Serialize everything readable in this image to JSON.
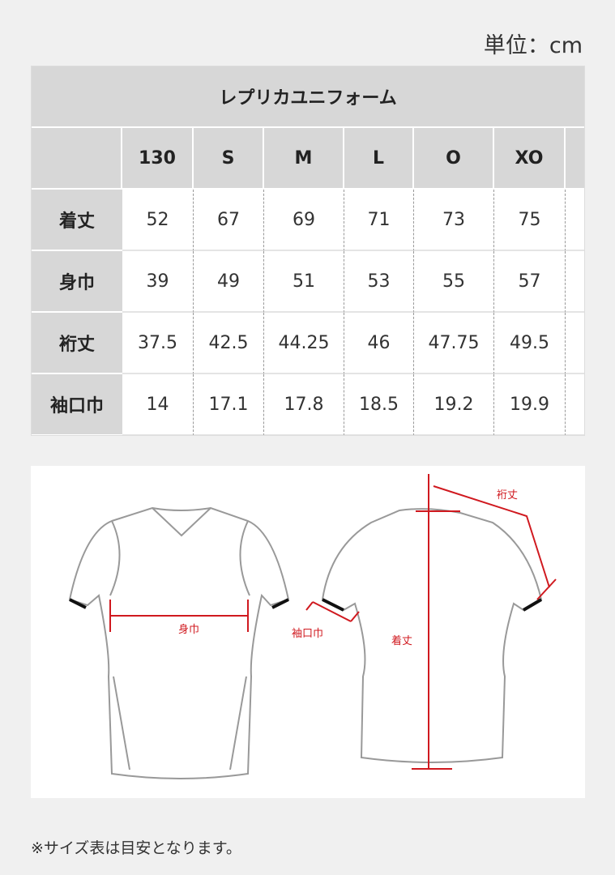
{
  "unit_label": "単位：cm",
  "table": {
    "title": "レプリカユニフォーム",
    "sizes": [
      "130",
      "S",
      "M",
      "L",
      "O",
      "XO"
    ],
    "rows": [
      {
        "label": "着丈",
        "values": [
          "52",
          "67",
          "69",
          "71",
          "73",
          "75"
        ]
      },
      {
        "label": "身巾",
        "values": [
          "39",
          "49",
          "51",
          "53",
          "55",
          "57"
        ]
      },
      {
        "label": "裄丈",
        "values": [
          "37.5",
          "42.5",
          "44.25",
          "46",
          "47.75",
          "49.5"
        ]
      },
      {
        "label": "袖口巾",
        "values": [
          "14",
          "17.1",
          "17.8",
          "18.5",
          "19.2",
          "19.9"
        ]
      }
    ]
  },
  "diagram": {
    "chest_label": "身巾",
    "cuff_label": "袖口巾",
    "length_label": "着丈",
    "sleeve_label": "裄丈",
    "measure_color": "#d0191f"
  },
  "note": "※サイズ表は目安となります。"
}
